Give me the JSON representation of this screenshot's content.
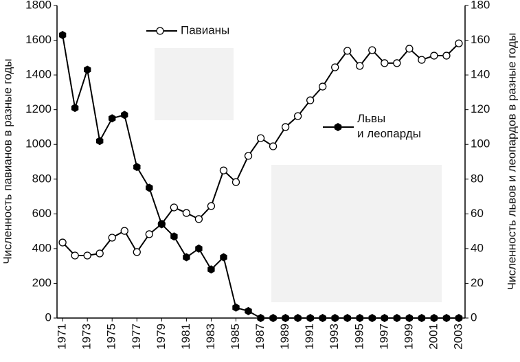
{
  "chart_data": {
    "type": "line",
    "x": [
      1971,
      1972,
      1973,
      1974,
      1975,
      1976,
      1977,
      1978,
      1979,
      1980,
      1981,
      1982,
      1983,
      1984,
      1985,
      1986,
      1987,
      1988,
      1989,
      1990,
      1991,
      1992,
      1993,
      1994,
      1995,
      1996,
      1997,
      1998,
      1999,
      2000,
      2001,
      2002,
      2003
    ],
    "xlim": [
      1970.55,
      2003.5
    ],
    "xticks": [
      1971,
      1973,
      1975,
      1977,
      1979,
      1981,
      1983,
      1985,
      1987,
      1989,
      1991,
      1993,
      1995,
      1997,
      1999,
      2001,
      2003
    ],
    "ylabel": "Численность павианов в разные годы",
    "y2label": "Численность львов и леопардов в разные годы",
    "ylim": [
      0,
      1800
    ],
    "yticks": [
      0,
      200,
      400,
      600,
      800,
      1000,
      1200,
      1400,
      1600,
      1800
    ],
    "y2lim": [
      0,
      180
    ],
    "y2ticks": [
      0,
      20,
      40,
      60,
      80,
      100,
      120,
      140,
      160,
      180
    ],
    "series": [
      {
        "name": "Павианы",
        "color": "#000000",
        "marker": "open-circle",
        "values": [
          435,
          360,
          360,
          372,
          463,
          502,
          380,
          483,
          542,
          637,
          605,
          570,
          645,
          850,
          783,
          934,
          1036,
          989,
          1100,
          1163,
          1254,
          1333,
          1444,
          1539,
          1452,
          1543,
          1468,
          1468,
          1551,
          1487,
          1511,
          1511,
          1582
        ]
      },
      {
        "name": "Львы\nи леопарды",
        "color": "#000000",
        "marker": "filled-hexagon",
        "axis": "y2",
        "values": [
          163,
          121,
          143,
          102,
          115,
          117,
          87,
          75,
          54,
          47,
          35,
          40,
          28,
          35,
          6,
          4,
          0,
          0,
          0,
          0,
          0,
          0,
          0,
          0,
          0,
          0,
          0,
          0,
          0,
          0,
          0,
          0,
          0
        ]
      }
    ]
  }
}
